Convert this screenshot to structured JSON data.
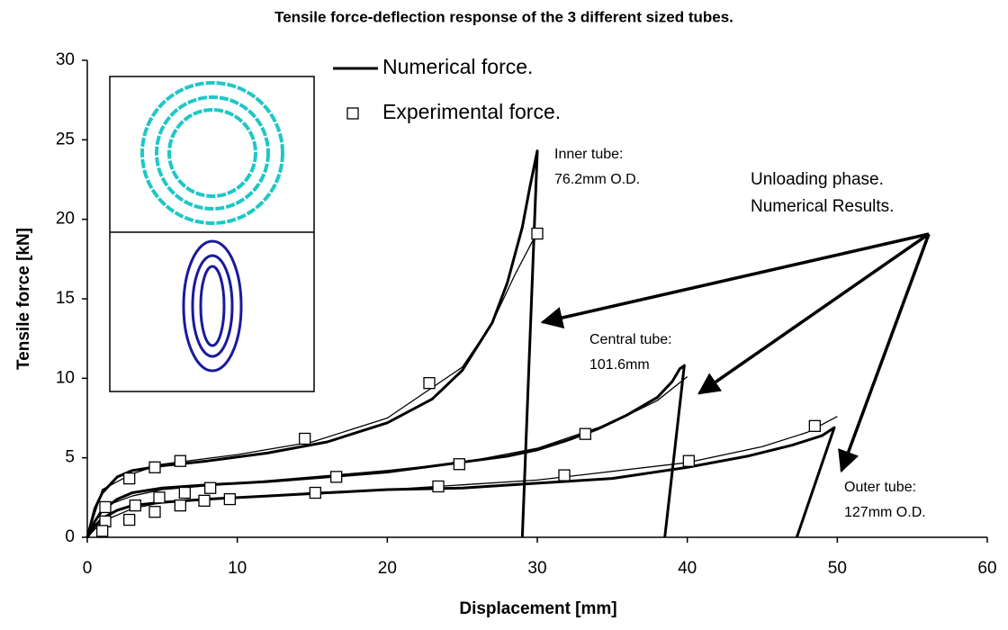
{
  "chart_data": {
    "type": "line",
    "title": "Tensile force-deflection response of the 3 different sized tubes.",
    "xlabel": "Displacement [mm]",
    "ylabel": "Tensile force [kN]",
    "xlim": [
      0,
      60
    ],
    "ylim": [
      0,
      30
    ],
    "xticks": [
      0,
      10,
      20,
      30,
      40,
      50,
      60
    ],
    "yticks": [
      0,
      5,
      10,
      15,
      20,
      25,
      30
    ],
    "grid": false,
    "annotations": [
      "Inner tube:",
      "76.2mm O.D.",
      "Central tube:",
      "101.6mm",
      "Outer tube:",
      "127mm O.D.",
      "Unloading phase.",
      "Numerical Results."
    ],
    "series": [
      {
        "name": "Numerical force.",
        "style": "thick",
        "color": "#000000",
        "lines": [
          {
            "x": [
              0,
              0.5,
              1,
              2,
              3,
              5,
              8,
              12,
              16,
              20,
              23,
              25,
              27,
              28,
              29,
              29.5,
              30,
              29.0
            ],
            "y": [
              0,
              1.8,
              2.8,
              3.8,
              4.2,
              4.5,
              4.8,
              5.3,
              6,
              7.2,
              8.7,
              10.5,
              13.5,
              16,
              19.5,
              22,
              24.3,
              0
            ]
          },
          {
            "x": [
              0,
              0.5,
              1,
              2,
              3,
              5,
              8,
              12,
              16,
              20,
              24,
              28,
              30,
              32,
              34,
              36,
              38,
              39,
              39.5,
              39.8,
              38.5
            ],
            "y": [
              0,
              1,
              1.7,
              2.4,
              2.8,
              3.1,
              3.3,
              3.5,
              3.8,
              4.1,
              4.6,
              5.1,
              5.5,
              6.1,
              6.8,
              7.7,
              8.8,
              9.8,
              10.6,
              10.8,
              0
            ]
          },
          {
            "x": [
              0,
              0.5,
              1,
              2,
              3,
              5,
              8,
              12,
              16,
              20,
              25,
              30,
              35,
              40,
              44,
              47,
              49,
              49.8,
              47.3
            ],
            "y": [
              0,
              0.7,
              1.2,
              1.7,
              2,
              2.2,
              2.4,
              2.6,
              2.8,
              3,
              3.1,
              3.4,
              3.7,
              4.4,
              5.1,
              5.8,
              6.4,
              6.9,
              0
            ]
          }
        ]
      },
      {
        "style": "thin",
        "color": "#000000",
        "lines": [
          {
            "x": [
              0,
              1,
              3,
              5,
              10,
              15,
              20,
              25,
              27,
              28.5,
              30
            ],
            "y": [
              0,
              3,
              4,
              4.6,
              5.2,
              6,
              7.5,
              10.7,
              13.5,
              16.5,
              19.2
            ]
          },
          {
            "x": [
              0,
              1,
              3,
              5,
              10,
              15,
              20,
              25,
              30,
              35,
              38,
              40
            ],
            "y": [
              0,
              1.9,
              2.6,
              3,
              3.4,
              3.8,
              4.2,
              4.7,
              5.6,
              7.2,
              8.6,
              10.1
            ]
          },
          {
            "x": [
              0,
              1,
              3,
              5,
              10,
              15,
              20,
              30,
              40,
              45,
              48,
              50
            ],
            "y": [
              0,
              1,
              1.8,
              2.2,
              2.5,
              2.8,
              3,
              3.6,
              4.7,
              5.7,
              6.6,
              7.6
            ]
          }
        ]
      },
      {
        "name": "Experimental force.",
        "style": "marker",
        "color": "#000000",
        "x": [
          1.2,
          2.8,
          4.5,
          6.2,
          14.5,
          22.8,
          30,
          1.2,
          3.2,
          4.8,
          6.5,
          8.2,
          16.6,
          24.8,
          33.2,
          1.0,
          2.8,
          4.5,
          6.2,
          7.8,
          9.5,
          15.2,
          23.4,
          31.8,
          40.1,
          48.5
        ],
        "y": [
          1.9,
          3.7,
          4.4,
          4.8,
          6.2,
          9.7,
          19.1,
          1.0,
          2.0,
          2.5,
          2.8,
          3.1,
          3.8,
          4.6,
          6.5,
          0.4,
          1.1,
          1.6,
          2.0,
          2.3,
          2.4,
          2.8,
          3.2,
          3.9,
          4.8,
          7.0
        ]
      }
    ]
  }
}
